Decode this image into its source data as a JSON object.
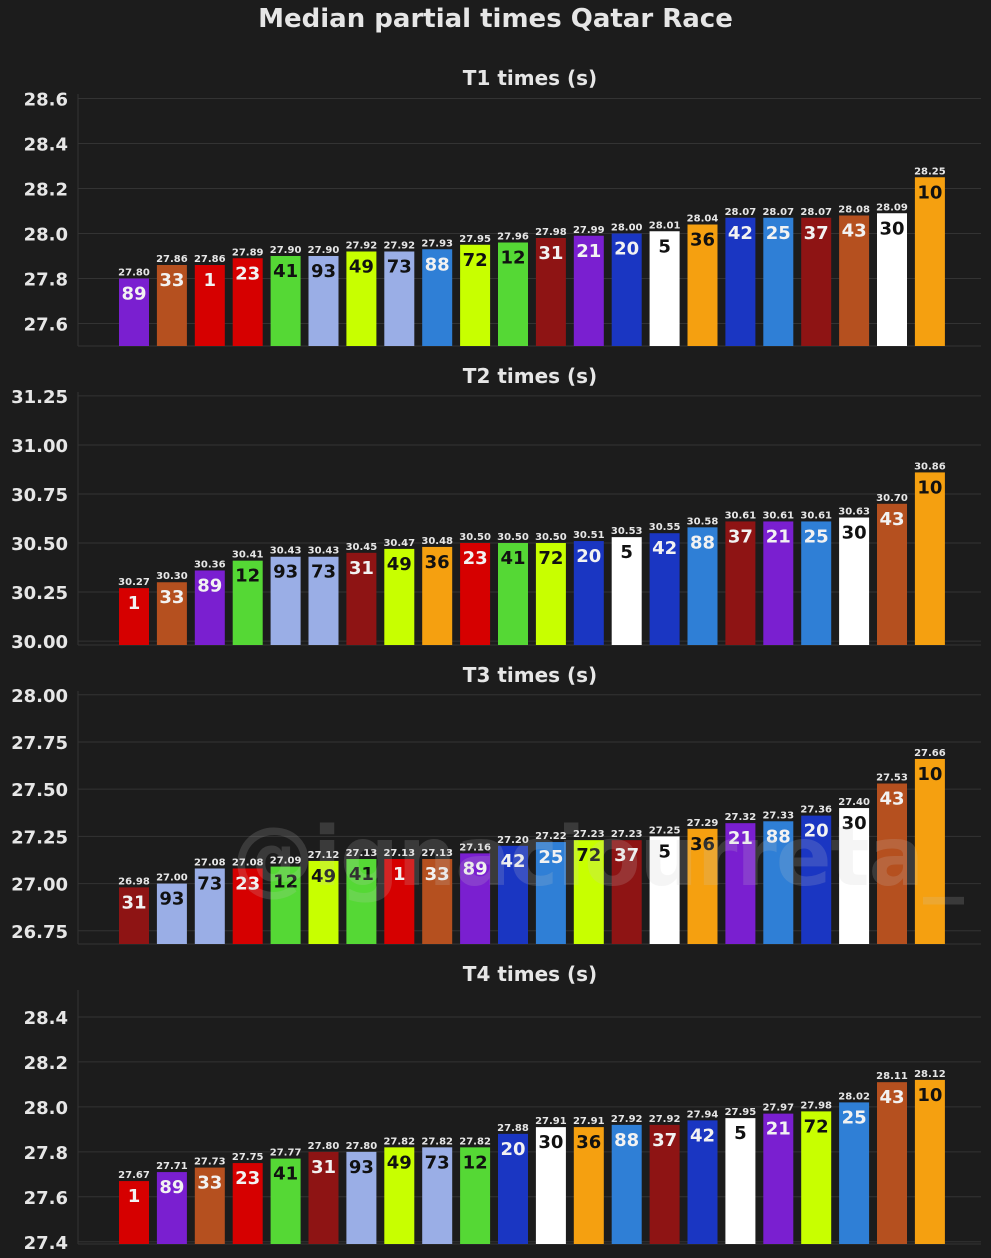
{
  "title": "Median partial times Qatar Race",
  "watermark": "@ignaciourreta_",
  "colors": {
    "background": "#1c1c1c",
    "grid": "#333333",
    "text": "#e6e6e6"
  },
  "rider_colors": {
    "1": "#d60000",
    "23": "#d60000",
    "5": "#ffffff",
    "30": "#ffffff",
    "10": "#f5a010",
    "36": "#f5a010",
    "12": "#55d835",
    "41": "#55d835",
    "20": "#1a36c2",
    "42": "#1a36c2",
    "21": "#7a1fd0",
    "89": "#7a1fd0",
    "25": "#2f7fd6",
    "88": "#2f7fd6",
    "31": "#8e1414",
    "37": "#8e1414",
    "33": "#b5501f",
    "43": "#b5501f",
    "49": "#c8ff00",
    "72": "#c8ff00",
    "73": "#9aaee6",
    "93": "#9aaee6"
  },
  "chart_data": [
    {
      "type": "bar",
      "title": "T1 times (s)",
      "ylim": [
        27.5,
        28.62
      ],
      "yticks": [
        27.6,
        27.8,
        28.0,
        28.2,
        28.4,
        28.6
      ],
      "ytick_labels": [
        "27.6",
        "27.8",
        "28.0",
        "28.2",
        "28.4",
        "28.6"
      ],
      "categories": [
        "89",
        "33",
        "1",
        "23",
        "41",
        "93",
        "49",
        "73",
        "88",
        "72",
        "12",
        "31",
        "21",
        "20",
        "5",
        "36",
        "42",
        "25",
        "37",
        "43",
        "30",
        "10"
      ],
      "values": [
        27.8,
        27.86,
        27.86,
        27.89,
        27.9,
        27.9,
        27.92,
        27.92,
        27.93,
        27.95,
        27.96,
        27.98,
        27.99,
        28.0,
        28.01,
        28.04,
        28.07,
        28.07,
        28.07,
        28.08,
        28.09,
        28.25
      ],
      "value_labels": [
        "27.80",
        "27.86",
        "27.86",
        "27.89",
        "27.90",
        "27.90",
        "27.92",
        "27.92",
        "27.93",
        "27.95",
        "27.96",
        "27.98",
        "27.99",
        "28.00",
        "28.01",
        "28.04",
        "28.07",
        "28.07",
        "28.07",
        "28.08",
        "28.09",
        "28.25"
      ],
      "grid": true
    },
    {
      "type": "bar",
      "title": "T2 times (s)",
      "ylim": [
        29.98,
        31.27
      ],
      "yticks": [
        30.0,
        30.25,
        30.5,
        30.75,
        31.0,
        31.25
      ],
      "ytick_labels": [
        "30.00",
        "30.25",
        "30.50",
        "30.75",
        "31.00",
        "31.25"
      ],
      "categories": [
        "1",
        "33",
        "89",
        "12",
        "93",
        "73",
        "31",
        "49",
        "36",
        "23",
        "41",
        "72",
        "20",
        "5",
        "42",
        "88",
        "37",
        "21",
        "25",
        "30",
        "43",
        "10"
      ],
      "values": [
        30.27,
        30.3,
        30.36,
        30.41,
        30.43,
        30.43,
        30.45,
        30.47,
        30.48,
        30.5,
        30.5,
        30.5,
        30.51,
        30.53,
        30.55,
        30.58,
        30.61,
        30.61,
        30.61,
        30.63,
        30.7,
        30.86
      ],
      "value_labels": [
        "30.27",
        "30.30",
        "30.36",
        "30.41",
        "30.43",
        "30.43",
        "30.45",
        "30.47",
        "30.48",
        "30.50",
        "30.50",
        "30.50",
        "30.51",
        "30.53",
        "30.55",
        "30.58",
        "30.61",
        "30.61",
        "30.61",
        "30.63",
        "30.70",
        "30.86"
      ],
      "grid": true
    },
    {
      "type": "bar",
      "title": "T3 times (s)",
      "ylim": [
        26.68,
        28.02
      ],
      "yticks": [
        26.75,
        27.0,
        27.25,
        27.5,
        27.75,
        28.0
      ],
      "ytick_labels": [
        "26.75",
        "27.00",
        "27.25",
        "27.50",
        "27.75",
        "28.00"
      ],
      "categories": [
        "31",
        "93",
        "73",
        "23",
        "12",
        "49",
        "41",
        "1",
        "33",
        "89",
        "42",
        "25",
        "72",
        "37",
        "5",
        "36",
        "21",
        "88",
        "20",
        "30",
        "43",
        "10"
      ],
      "values": [
        26.98,
        27.0,
        27.08,
        27.08,
        27.09,
        27.12,
        27.13,
        27.13,
        27.13,
        27.16,
        27.2,
        27.22,
        27.23,
        27.23,
        27.25,
        27.29,
        27.32,
        27.33,
        27.36,
        27.4,
        27.53,
        27.66
      ],
      "value_labels": [
        "26.98",
        "27.00",
        "27.08",
        "27.08",
        "27.09",
        "27.12",
        "27.13",
        "27.13",
        "27.13",
        "27.16",
        "27.20",
        "27.22",
        "27.23",
        "27.23",
        "27.25",
        "27.29",
        "27.32",
        "27.33",
        "27.36",
        "27.40",
        "27.53",
        "27.66"
      ],
      "grid": true
    },
    {
      "type": "bar",
      "title": "T4 times (s)",
      "ylim": [
        27.39,
        28.52
      ],
      "yticks": [
        27.4,
        27.6,
        27.8,
        28.0,
        28.2,
        28.4
      ],
      "ytick_labels": [
        "27.4",
        "27.6",
        "27.8",
        "28.0",
        "28.2",
        "28.4"
      ],
      "categories": [
        "1",
        "89",
        "33",
        "23",
        "41",
        "31",
        "93",
        "49",
        "73",
        "12",
        "20",
        "30",
        "36",
        "88",
        "37",
        "42",
        "5",
        "21",
        "72",
        "25",
        "43",
        "10"
      ],
      "values": [
        27.67,
        27.71,
        27.73,
        27.75,
        27.77,
        27.8,
        27.8,
        27.82,
        27.82,
        27.82,
        27.88,
        27.91,
        27.91,
        27.92,
        27.92,
        27.94,
        27.95,
        27.97,
        27.98,
        28.02,
        28.11,
        28.12
      ],
      "value_labels": [
        "27.67",
        "27.71",
        "27.73",
        "27.75",
        "27.77",
        "27.80",
        "27.80",
        "27.82",
        "27.82",
        "27.82",
        "27.88",
        "27.91",
        "27.91",
        "27.92",
        "27.92",
        "27.94",
        "27.95",
        "27.97",
        "27.98",
        "28.02",
        "28.11",
        "28.12"
      ],
      "grid": true
    }
  ]
}
